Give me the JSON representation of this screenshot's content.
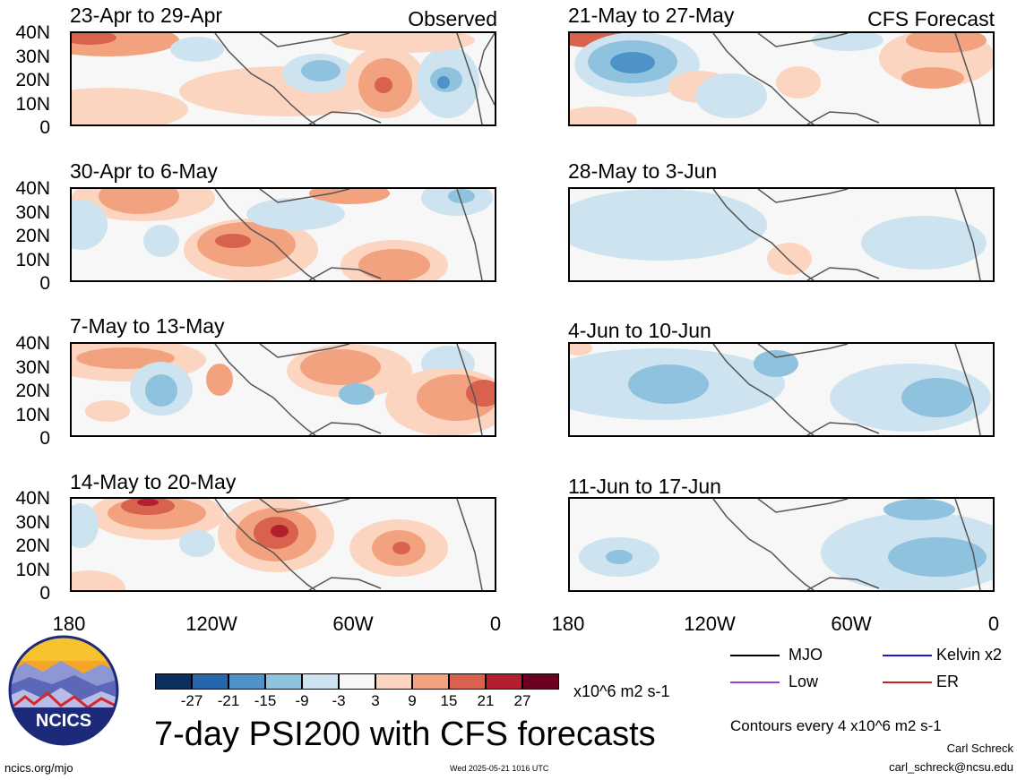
{
  "panels": {
    "observed": [
      {
        "title": "23-Apr to 29-Apr",
        "tag": "Observed"
      },
      {
        "title": "30-Apr to 6-May",
        "tag": ""
      },
      {
        "title": "7-May to 13-May",
        "tag": ""
      },
      {
        "title": "14-May to 20-May",
        "tag": ""
      }
    ],
    "forecast": [
      {
        "title": "21-May to 27-May",
        "tag": "CFS Forecast"
      },
      {
        "title": "28-May to 3-Jun",
        "tag": ""
      },
      {
        "title": "4-Jun to 10-Jun",
        "tag": ""
      },
      {
        "title": "11-Jun to 17-Jun",
        "tag": ""
      }
    ]
  },
  "axes": {
    "lat_labels": [
      "40N",
      "30N",
      "20N",
      "10N",
      "0"
    ],
    "lon_labels": [
      "180",
      "120W",
      "60W",
      "0"
    ]
  },
  "colorbar": {
    "colors": [
      "#0b3060",
      "#2666ae",
      "#4d93c7",
      "#8fc2de",
      "#cde3ef",
      "#f7f7f7",
      "#fbd5c0",
      "#f2a27e",
      "#d8624d",
      "#b41f2e",
      "#6a0121"
    ],
    "labels": [
      "-27",
      "-21",
      "-15",
      "-9",
      "-3",
      "3",
      "9",
      "15",
      "21",
      "27"
    ],
    "units": "x10^6 m2 s-1"
  },
  "legend": {
    "items": [
      {
        "label": "MJO",
        "color": "#000000"
      },
      {
        "label": "Kelvin x2",
        "color": "#1a1acc"
      },
      {
        "label": "Low",
        "color": "#9a3fd6"
      },
      {
        "label": "ER",
        "color": "#d22020"
      }
    ],
    "contours": "Contours every 4 x10^6 m2 s-1"
  },
  "footer": {
    "main_title": "7-day PSI200 with CFS forecasts",
    "url": "ncics.org/mjo",
    "timestamp": "Wed 2025-05-21 1016 UTC",
    "author": "Carl Schreck",
    "email": "carl_schreck@ncsu.edu",
    "logo_text": "NCICS"
  }
}
